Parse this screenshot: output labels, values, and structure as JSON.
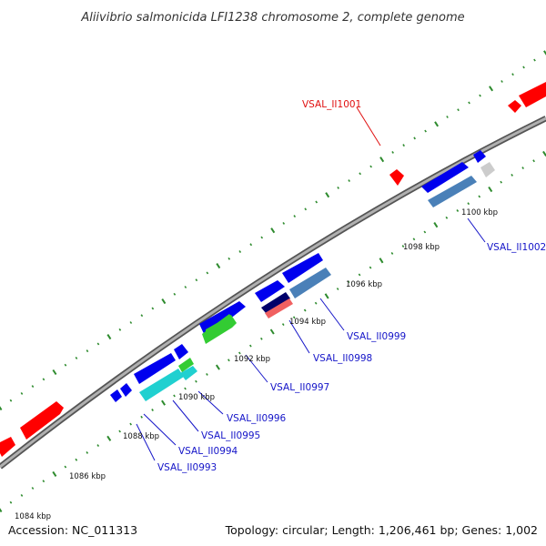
{
  "title": "Aliivibrio salmonicida LFI1238 chromosome 2, complete genome",
  "footer": {
    "accession": "Accession: NC_011313",
    "summary": "Topology: circular; Length: 1,206,461 bp; Genes: 1,002"
  },
  "colors": {
    "backbone": "#8a8a8a",
    "tick_dots": "#2e8b2e",
    "label_blue": "#1414c8",
    "label_red": "#e01010",
    "gene_red": "#ff0000",
    "gene_blue": "#0000ee",
    "gene_cyan": "#20d0d0",
    "gene_green": "#33cc33",
    "gene_steel": "#4a80b8",
    "gene_navy": "#00006a",
    "gene_salmon": "#f06060",
    "gene_grey": "#cccccc"
  },
  "tick_labels": [
    "1084 kbp",
    "1086 kbp",
    "1088 kbp",
    "1090 kbp",
    "1092 kbp",
    "1094 kbp",
    "1096 kbp",
    "1098 kbp",
    "1100 kbp"
  ],
  "gene_labels": [
    {
      "id": "VSAL_II0993",
      "color": "label_blue"
    },
    {
      "id": "VSAL_II0994",
      "color": "label_blue"
    },
    {
      "id": "VSAL_II0995",
      "color": "label_blue"
    },
    {
      "id": "VSAL_II0996",
      "color": "label_blue"
    },
    {
      "id": "VSAL_II0997",
      "color": "label_blue"
    },
    {
      "id": "VSAL_II0998",
      "color": "label_blue"
    },
    {
      "id": "VSAL_II0999",
      "color": "label_blue"
    },
    {
      "id": "VSAL_II1001",
      "color": "label_red"
    },
    {
      "id": "VSAL_II1002",
      "color": "label_blue"
    }
  ]
}
